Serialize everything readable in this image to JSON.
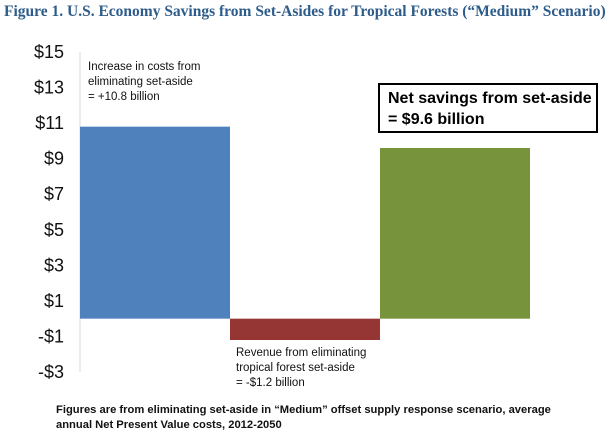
{
  "title": "Figure 1. U.S. Economy Savings from Set-Asides for Tropical Forests (“Medium” Scenario)",
  "annotations": {
    "increase": [
      "Increase in costs from",
      "eliminating set-aside",
      "= +10.8 billion"
    ],
    "revenue": [
      "Revenue from eliminating",
      "tropical forest set-aside",
      "= -$1.2 billion"
    ],
    "net_savings": [
      "Net savings from set-aside",
      "= $9.6 billion"
    ]
  },
  "footnote": [
    "Figures are from eliminating set-aside in “Medium” offset supply response scenario, average",
    "annual Net Present Value costs, 2012-2050"
  ],
  "colors": {
    "title": "#2E5C8A",
    "increase_bar": "#4F81BD",
    "revenue_bar": "#963634",
    "net_bar": "#77933C"
  },
  "chart_data": {
    "type": "bar",
    "style": "waterfall",
    "ylim": [
      -3,
      15
    ],
    "yticks": [
      15,
      13,
      11,
      9,
      7,
      5,
      3,
      1,
      -1,
      -3
    ],
    "ytick_labels": [
      "$15",
      "$13",
      "$11",
      "$9",
      "$7",
      "$5",
      "$3",
      "$1",
      "-$1",
      "-$3"
    ],
    "grid": false,
    "legend": "none",
    "bars": [
      {
        "category": "Increase in costs from eliminating set-aside",
        "value": 10.8,
        "base": 0,
        "color": "#4F81BD"
      },
      {
        "category": "Revenue from eliminating tropical forest set-aside",
        "value": -1.2,
        "base": 0,
        "color": "#963634"
      },
      {
        "category": "Net savings from set-aside",
        "value": 9.6,
        "base": 0,
        "color": "#77933C"
      }
    ]
  }
}
